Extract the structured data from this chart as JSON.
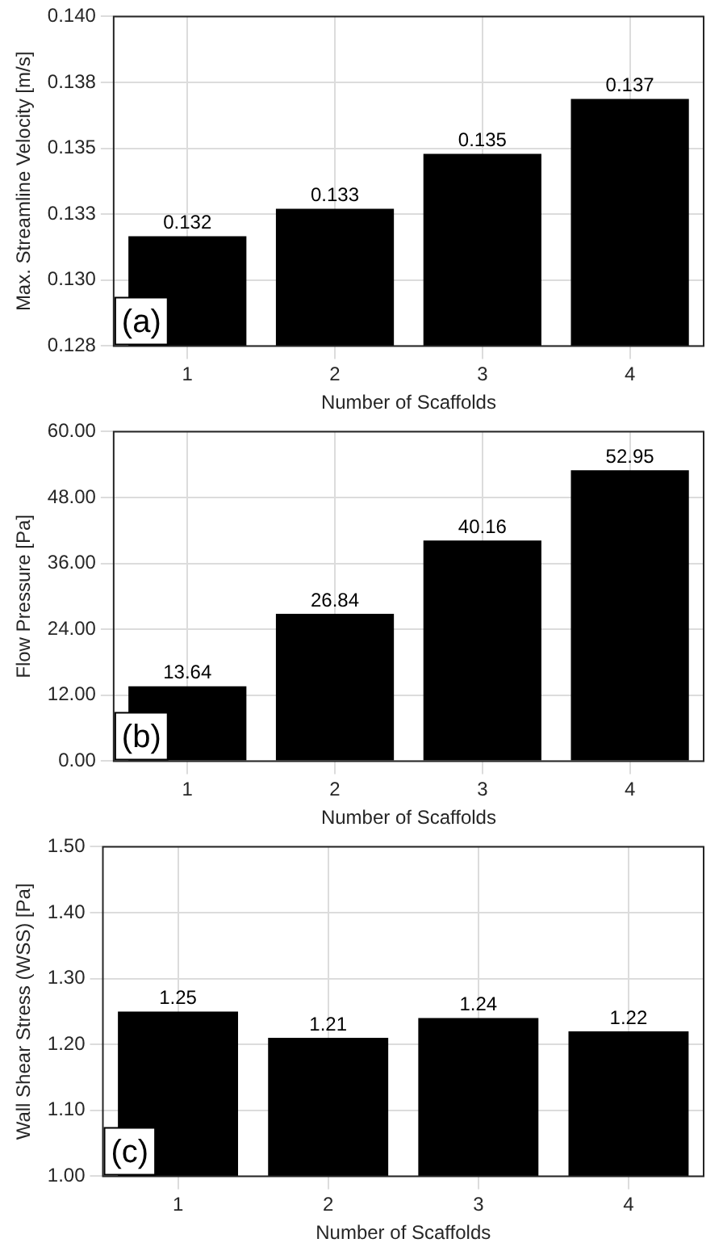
{
  "chart_data": [
    {
      "type": "bar",
      "xlabel": "Number of Scaffolds",
      "ylabel": "Max. Streamline Velocity [m/s]",
      "categories": [
        "1",
        "2",
        "3",
        "4"
      ],
      "values": [
        0.132,
        0.133,
        0.135,
        0.137
      ],
      "color": "#000000",
      "ylim": [
        0.128,
        0.14
      ],
      "yticks": [
        {
          "value": 0.128,
          "label": "0.128"
        },
        {
          "value": 0.1304,
          "label": "0.130"
        },
        {
          "value": 0.1328,
          "label": "0.133"
        },
        {
          "value": 0.1352,
          "label": "0.135"
        },
        {
          "value": 0.1376,
          "label": "0.138"
        },
        {
          "value": 0.14,
          "label": "0.140"
        }
      ],
      "grid": true,
      "legend": false,
      "data_labels": true,
      "annotations": [
        "(a)"
      ]
    },
    {
      "type": "bar",
      "xlabel": "Number of Scaffolds",
      "ylabel": "Flow Pressure [Pa]",
      "categories": [
        "1",
        "2",
        "3",
        "4"
      ],
      "values": [
        13.64,
        26.84,
        40.16,
        52.95
      ],
      "color": "#000000",
      "ylim": [
        0,
        60
      ],
      "yticks": [
        {
          "value": 0,
          "label": "0.00"
        },
        {
          "value": 12,
          "label": "12.00"
        },
        {
          "value": 24,
          "label": "24.00"
        },
        {
          "value": 36,
          "label": "36.00"
        },
        {
          "value": 48,
          "label": "48.00"
        },
        {
          "value": 60,
          "label": "60.00"
        }
      ],
      "grid": true,
      "legend": false,
      "data_labels": true,
      "annotations": [
        "(b)"
      ]
    },
    {
      "type": "bar",
      "xlabel": "Number of Scaffolds",
      "ylabel": "Wall Shear Stress (WSS) [Pa]",
      "categories": [
        "1",
        "2",
        "3",
        "4"
      ],
      "values": [
        1.25,
        1.21,
        1.24,
        1.22
      ],
      "color": "#000000",
      "ylim": [
        1,
        1.5
      ],
      "yticks": [
        {
          "value": 1,
          "label": "1.00"
        },
        {
          "value": 1.1,
          "label": "1.10"
        },
        {
          "value": 1.2,
          "label": "1.20"
        },
        {
          "value": 1.3,
          "label": "1.30"
        },
        {
          "value": 1.4,
          "label": "1.40"
        },
        {
          "value": 1.5,
          "label": "1.50"
        }
      ],
      "grid": true,
      "legend": false,
      "data_labels": true,
      "annotations": [
        "(c)"
      ]
    }
  ]
}
